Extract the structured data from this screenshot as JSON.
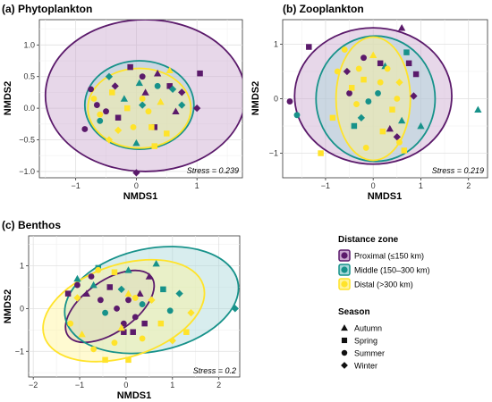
{
  "legend": {
    "distance_title": "Distance zone",
    "season_title": "Season",
    "zones": [
      {
        "label": "Proximal (≤150 km)",
        "color": "#5b1a6b",
        "fill": "#c9a6cf"
      },
      {
        "label": "Middle (150–300 km)",
        "color": "#17928a",
        "fill": "#a9d8da"
      },
      {
        "label": "Distal (>300 km)",
        "color": "#ffe32a",
        "fill": "#fff39a"
      }
    ],
    "seasons": [
      {
        "label": "Autumn",
        "shape": "triangle"
      },
      {
        "label": "Spring",
        "shape": "square"
      },
      {
        "label": "Summer",
        "shape": "circle"
      },
      {
        "label": "Winter",
        "shape": "diamond"
      }
    ]
  },
  "chart_data": [
    {
      "type": "scatter",
      "title": "(a) Phytoplankton",
      "xlabel": "NMDS1",
      "ylabel": "NMDS2",
      "xlim": [
        -1.6,
        1.75
      ],
      "ylim": [
        -1.1,
        1.4
      ],
      "xticks": [
        -1,
        0,
        1
      ],
      "xtick_labels": [
        "−1",
        "0",
        "1"
      ],
      "yticks": [
        -1.0,
        -0.5,
        0.0,
        0.5,
        1.0
      ],
      "ytick_labels": [
        "−1.0",
        "−0.5",
        "0.0",
        "0.5",
        "1.0"
      ],
      "grid": true,
      "stress_label": "Stress = 0.239",
      "ellipses": [
        {
          "zone": 0,
          "cx": 0.15,
          "cy": 0.2,
          "rx": 1.65,
          "ry": 1.2,
          "angle": 0
        },
        {
          "zone": 1,
          "cx": 0.05,
          "cy": 0.05,
          "rx": 0.9,
          "ry": 0.7,
          "angle": 0
        },
        {
          "zone": 2,
          "cx": 0.05,
          "cy": 0.0,
          "rx": 0.85,
          "ry": 0.63,
          "angle": 0
        }
      ],
      "points": [
        [
          -0.85,
          -0.33,
          0,
          "circle"
        ],
        [
          -0.75,
          0.3,
          0,
          "circle"
        ],
        [
          -0.65,
          0.05,
          0,
          "circle"
        ],
        [
          -0.5,
          -0.05,
          0,
          "circle"
        ],
        [
          -0.35,
          0.35,
          0,
          "diamond"
        ],
        [
          -0.3,
          -0.15,
          0,
          "square"
        ],
        [
          -0.1,
          0.65,
          0,
          "square"
        ],
        [
          0.1,
          0.5,
          0,
          "circle"
        ],
        [
          0.15,
          0.25,
          0,
          "triangle"
        ],
        [
          0.3,
          -0.3,
          0,
          "square"
        ],
        [
          0.35,
          0.55,
          0,
          "triangle"
        ],
        [
          0.55,
          0.35,
          0,
          "square"
        ],
        [
          0.75,
          0.25,
          0,
          "diamond"
        ],
        [
          1.05,
          0.55,
          0,
          "square"
        ],
        [
          1.0,
          0.0,
          0,
          "diamond"
        ],
        [
          0.0,
          -1.02,
          0,
          "diamond"
        ],
        [
          0.65,
          -0.05,
          0,
          "triangle"
        ],
        [
          -0.6,
          -0.2,
          1,
          "circle"
        ],
        [
          -0.45,
          0.5,
          1,
          "diamond"
        ],
        [
          -0.2,
          0.15,
          1,
          "triangle"
        ],
        [
          0.05,
          0.4,
          1,
          "triangle"
        ],
        [
          0.0,
          -0.55,
          1,
          "triangle"
        ],
        [
          0.35,
          0.35,
          1,
          "circle"
        ],
        [
          0.6,
          0.3,
          1,
          "diamond"
        ],
        [
          0.75,
          0.05,
          1,
          "diamond"
        ],
        [
          0.1,
          0.05,
          1,
          "diamond"
        ],
        [
          -0.7,
          0.15,
          2,
          "circle"
        ],
        [
          -0.6,
          -0.1,
          2,
          "circle"
        ],
        [
          -0.4,
          0.25,
          2,
          "square"
        ],
        [
          -0.3,
          -0.35,
          2,
          "diamond"
        ],
        [
          -0.15,
          0.0,
          2,
          "square"
        ],
        [
          -0.05,
          -0.3,
          2,
          "circle"
        ],
        [
          0.1,
          0.15,
          2,
          "circle"
        ],
        [
          0.2,
          -0.05,
          2,
          "circle"
        ],
        [
          0.3,
          -0.6,
          2,
          "square"
        ],
        [
          0.4,
          0.1,
          2,
          "triangle"
        ],
        [
          0.5,
          -0.4,
          2,
          "square"
        ],
        [
          0.55,
          0.6,
          2,
          "triangle"
        ],
        [
          -0.45,
          -0.5,
          2,
          "diamond"
        ],
        [
          0.25,
          -0.3,
          2,
          "square"
        ]
      ]
    },
    {
      "type": "scatter",
      "title": "(b) Zooplankton",
      "xlabel": "NMDS1",
      "ylabel": "NMDS2",
      "xlim": [
        -1.9,
        2.4
      ],
      "ylim": [
        -1.45,
        1.45
      ],
      "xticks": [
        -1,
        0,
        1,
        2
      ],
      "xtick_labels": [
        "−1",
        "0",
        "1",
        "2"
      ],
      "yticks": [
        -1,
        0,
        1
      ],
      "ytick_labels": [
        "−1",
        "0",
        "1"
      ],
      "grid": true,
      "stress_label": "Stress = 0.219",
      "ellipses": [
        {
          "zone": 0,
          "cx": 0.0,
          "cy": 0.05,
          "rx": 1.65,
          "ry": 1.25,
          "angle": 0
        },
        {
          "zone": 1,
          "cx": 0.05,
          "cy": 0.0,
          "rx": 1.25,
          "ry": 1.15,
          "angle": 0
        },
        {
          "zone": 2,
          "cx": 0.0,
          "cy": 0.0,
          "rx": 0.78,
          "ry": 1.13,
          "angle": 0
        }
      ],
      "points": [
        [
          -1.75,
          -0.05,
          0,
          "circle"
        ],
        [
          -1.35,
          0.95,
          0,
          "square"
        ],
        [
          -0.55,
          0.5,
          0,
          "diamond"
        ],
        [
          -0.2,
          0.75,
          0,
          "circle"
        ],
        [
          0.15,
          0.65,
          0,
          "square"
        ],
        [
          0.35,
          -0.55,
          0,
          "triangle"
        ],
        [
          0.5,
          -0.7,
          0,
          "diamond"
        ],
        [
          0.6,
          1.3,
          0,
          "triangle"
        ],
        [
          0.75,
          0.65,
          0,
          "square"
        ],
        [
          0.85,
          0.05,
          0,
          "diamond"
        ],
        [
          0.9,
          0.45,
          0,
          "square"
        ],
        [
          -0.5,
          0.1,
          0,
          "circle"
        ],
        [
          -1.6,
          -0.3,
          1,
          "circle"
        ],
        [
          -0.4,
          -0.5,
          1,
          "square"
        ],
        [
          -0.1,
          -0.05,
          1,
          "circle"
        ],
        [
          0.1,
          0.1,
          1,
          "circle"
        ],
        [
          0.25,
          0.6,
          1,
          "triangle"
        ],
        [
          0.6,
          -0.4,
          1,
          "triangle"
        ],
        [
          0.7,
          0.85,
          1,
          "square"
        ],
        [
          1.0,
          -0.5,
          1,
          "triangle"
        ],
        [
          2.2,
          -0.2,
          1,
          "triangle"
        ],
        [
          -0.25,
          -0.35,
          1,
          "diamond"
        ],
        [
          -1.1,
          -1.0,
          2,
          "square"
        ],
        [
          -0.85,
          -0.35,
          2,
          "square"
        ],
        [
          -0.75,
          0.5,
          2,
          "circle"
        ],
        [
          -0.6,
          0.9,
          2,
          "circle"
        ],
        [
          -0.45,
          0.2,
          2,
          "square"
        ],
        [
          -0.3,
          0.55,
          2,
          "circle"
        ],
        [
          -0.2,
          0.35,
          2,
          "square"
        ],
        [
          0.0,
          0.8,
          2,
          "triangle"
        ],
        [
          0.15,
          0.3,
          2,
          "circle"
        ],
        [
          0.3,
          0.55,
          2,
          "circle"
        ],
        [
          0.4,
          -0.2,
          2,
          "square"
        ],
        [
          0.5,
          0.0,
          2,
          "circle"
        ],
        [
          0.55,
          -0.8,
          2,
          "circle"
        ],
        [
          0.65,
          -0.95,
          2,
          "square"
        ],
        [
          -0.15,
          -0.9,
          2,
          "circle"
        ],
        [
          0.2,
          -0.6,
          2,
          "square"
        ],
        [
          0.55,
          0.3,
          2,
          "diamond"
        ],
        [
          -0.35,
          -0.1,
          2,
          "circle"
        ]
      ]
    },
    {
      "type": "scatter",
      "title": "(c) Benthos",
      "xlabel": "NMDS1",
      "ylabel": "NMDS2",
      "xlim": [
        -2.1,
        2.45
      ],
      "ylim": [
        -1.6,
        1.7
      ],
      "xticks": [
        -2,
        -1,
        0,
        1,
        2
      ],
      "xtick_labels": [
        "−2",
        "−1",
        "0",
        "1",
        "2"
      ],
      "yticks": [
        -1,
        0,
        1
      ],
      "ytick_labels": [
        "−1",
        "0",
        "1"
      ],
      "grid": true,
      "stress_label": "Stress = 0.2",
      "ellipses": [
        {
          "zone": 0,
          "cx": -0.35,
          "cy": 0.05,
          "rx": 1.1,
          "ry": 0.6,
          "angle": -35
        },
        {
          "zone": 1,
          "cx": 0.55,
          "cy": 0.2,
          "rx": 1.9,
          "ry": 1.2,
          "angle": -12
        },
        {
          "zone": 2,
          "cx": -0.05,
          "cy": -0.05,
          "rx": 1.8,
          "ry": 1.08,
          "angle": -18
        }
      ],
      "points": [
        [
          -1.25,
          0.35,
          0,
          "square"
        ],
        [
          -1.05,
          0.55,
          0,
          "circle"
        ],
        [
          -0.85,
          0.35,
          0,
          "triangle"
        ],
        [
          -0.75,
          0.75,
          0,
          "circle"
        ],
        [
          -0.55,
          0.2,
          0,
          "circle"
        ],
        [
          -0.35,
          0.5,
          0,
          "square"
        ],
        [
          -0.2,
          0.0,
          0,
          "circle"
        ],
        [
          -0.05,
          -0.35,
          0,
          "circle"
        ],
        [
          0.05,
          0.2,
          0,
          "circle"
        ],
        [
          0.2,
          -0.2,
          0,
          "circle"
        ],
        [
          0.3,
          0.35,
          0,
          "triangle"
        ],
        [
          0.4,
          -0.35,
          0,
          "square"
        ],
        [
          0.15,
          -0.55,
          0,
          "square"
        ],
        [
          -0.05,
          -0.55,
          0,
          "square"
        ],
        [
          0.5,
          0.75,
          0,
          "triangle"
        ],
        [
          -1.05,
          0.7,
          1,
          "triangle"
        ],
        [
          -0.7,
          0.55,
          1,
          "triangle"
        ],
        [
          -0.45,
          -0.1,
          1,
          "circle"
        ],
        [
          -0.1,
          0.45,
          1,
          "diamond"
        ],
        [
          0.05,
          0.9,
          1,
          "triangle"
        ],
        [
          0.35,
          0.1,
          1,
          "circle"
        ],
        [
          0.8,
          0.45,
          1,
          "square"
        ],
        [
          0.95,
          -0.05,
          1,
          "circle"
        ],
        [
          1.15,
          0.35,
          1,
          "diamond"
        ],
        [
          2.35,
          0.0,
          1,
          "diamond"
        ],
        [
          0.65,
          1.05,
          1,
          "triangle"
        ],
        [
          -0.6,
          0.95,
          1,
          "square"
        ],
        [
          -1.2,
          -0.35,
          2,
          "circle"
        ],
        [
          -0.95,
          -0.6,
          2,
          "triangle"
        ],
        [
          -0.7,
          -0.95,
          2,
          "circle"
        ],
        [
          -0.45,
          -1.2,
          2,
          "square"
        ],
        [
          -0.25,
          -0.8,
          2,
          "circle"
        ],
        [
          -0.1,
          -0.45,
          2,
          "triangle"
        ],
        [
          0.05,
          -1.2,
          2,
          "square"
        ],
        [
          0.2,
          0.25,
          2,
          "circle"
        ],
        [
          0.35,
          -0.7,
          2,
          "circle"
        ],
        [
          0.55,
          0.2,
          2,
          "diamond"
        ],
        [
          0.75,
          -0.35,
          2,
          "square"
        ],
        [
          1.0,
          -0.75,
          2,
          "diamond"
        ],
        [
          1.3,
          -0.55,
          2,
          "square"
        ],
        [
          -0.6,
          0.9,
          2,
          "circle"
        ],
        [
          -0.25,
          0.85,
          2,
          "square"
        ],
        [
          -1.05,
          0.25,
          2,
          "diamond"
        ],
        [
          0.05,
          0.35,
          2,
          "triangle"
        ],
        [
          1.4,
          -0.1,
          2,
          "diamond"
        ]
      ]
    }
  ]
}
